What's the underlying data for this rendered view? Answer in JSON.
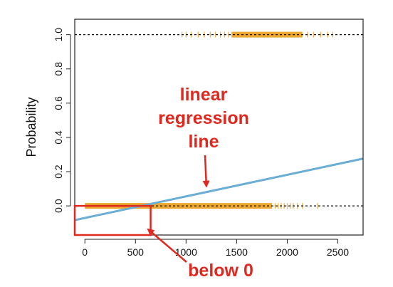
{
  "chart_data": {
    "type": "scatter",
    "title": "",
    "xlabel": "",
    "ylabel": "Probability",
    "xlim": [
      -100,
      2750
    ],
    "ylim": [
      -0.17,
      1.09
    ],
    "x_ticks": [
      0,
      500,
      1000,
      1500,
      2000,
      2500
    ],
    "x_tick_labels": [
      "0",
      "500",
      "1000",
      "1500",
      "2000",
      "2500"
    ],
    "y_ticks": [
      0.0,
      0.2,
      0.4,
      0.6,
      0.8,
      1.0
    ],
    "y_tick_labels": [
      "0.0",
      "0.2",
      "0.4",
      "0.6",
      "0.8",
      "1.0"
    ],
    "grid": false,
    "reference_lines": [
      0,
      1
    ],
    "series": [
      {
        "kind": "rug",
        "y": 0,
        "color": "#e8a020",
        "dense_range": [
          0,
          1850
        ],
        "x_sparse": [
          1880,
          1910,
          1940,
          1970,
          2000,
          2030,
          2060,
          2100,
          2150,
          2300
        ]
      },
      {
        "kind": "rug",
        "y": 1,
        "color": "#e8a020",
        "dense_range": [
          1450,
          2150
        ],
        "x_sparse": [
          960,
          1000,
          1050,
          1120,
          1180,
          1240,
          1290,
          1340,
          1380,
          1420,
          2200,
          2260,
          2330,
          2400,
          2450
        ]
      },
      {
        "kind": "line",
        "color": "#6aaed6",
        "x": [
          -100,
          2750
        ],
        "y": [
          -0.083,
          0.276
        ]
      }
    ],
    "annotations": [
      {
        "text": [
          "linear",
          "regression",
          "line"
        ],
        "color": "#e0281e",
        "points_to": [
          1180,
          0.085
        ]
      },
      {
        "text": [
          "below 0"
        ],
        "color": "#e0281e",
        "box": {
          "x": [
            -100,
            650
          ],
          "y": [
            -0.17,
            0.0
          ]
        }
      }
    ]
  }
}
